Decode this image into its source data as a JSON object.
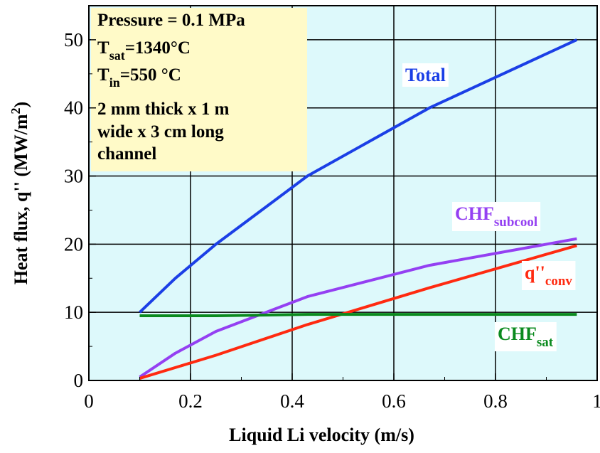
{
  "chart_data": {
    "type": "line",
    "xlabel": "Liquid Li velocity (m/s)",
    "ylabel": {
      "prefix": "Heat flux, q'' (MW/m",
      "sup": "2",
      "suffix": ")"
    },
    "xlim": [
      0,
      1
    ],
    "ylim": [
      0,
      55
    ],
    "x_ticks": [
      {
        "value": 0,
        "label": "0"
      },
      {
        "value": 0.2,
        "label": "0.2"
      },
      {
        "value": 0.4,
        "label": "0.4"
      },
      {
        "value": 0.6,
        "label": "0.6"
      },
      {
        "value": 0.8,
        "label": "0.8"
      },
      {
        "value": 1,
        "label": "1"
      }
    ],
    "y_ticks": [
      {
        "value": 0,
        "label": "0"
      },
      {
        "value": 10,
        "label": "10"
      },
      {
        "value": 20,
        "label": "20"
      },
      {
        "value": 30,
        "label": "30"
      },
      {
        "value": 40,
        "label": "40"
      },
      {
        "value": 50,
        "label": "50"
      }
    ],
    "grid": true,
    "plot_background": "#ddf9fb",
    "series": [
      {
        "key": "total",
        "label": {
          "main": "Total",
          "sub": ""
        },
        "color": "#1b3fe6",
        "points": [
          [
            0.1,
            10
          ],
          [
            0.17,
            15
          ],
          [
            0.25,
            20
          ],
          [
            0.43,
            30
          ],
          [
            0.67,
            40
          ],
          [
            0.96,
            50
          ]
        ]
      },
      {
        "key": "chf_subcool",
        "label": {
          "main": "CHF",
          "sub": "subcool"
        },
        "color": "#9440f2",
        "points": [
          [
            0.1,
            0.5
          ],
          [
            0.17,
            4
          ],
          [
            0.25,
            7.2
          ],
          [
            0.43,
            12.3
          ],
          [
            0.67,
            16.9
          ],
          [
            0.96,
            20.8
          ]
        ]
      },
      {
        "key": "q_conv",
        "label": {
          "main": "q''",
          "sub": "conv"
        },
        "color": "#ff2a10",
        "points": [
          [
            0.1,
            0.3
          ],
          [
            0.25,
            3.7
          ],
          [
            0.43,
            8.2
          ],
          [
            0.67,
            13.6
          ],
          [
            0.96,
            19.8
          ]
        ]
      },
      {
        "key": "chf_sat",
        "label": {
          "main": "CHF",
          "sub": "sat"
        },
        "color": "#0a8a1e",
        "points": [
          [
            0.1,
            9.5
          ],
          [
            0.25,
            9.5
          ],
          [
            0.43,
            9.7
          ],
          [
            0.67,
            9.7
          ],
          [
            0.96,
            9.7
          ]
        ]
      }
    ],
    "annotation_box": {
      "background": "#fffac8",
      "lines": [
        {
          "main": "Pressure = 0.1 MPa",
          "sub": "",
          "rest": ""
        },
        {
          "main": "T",
          "sub": "sat",
          "rest": "=1340°C"
        },
        {
          "main": "T",
          "sub": "in",
          "rest": "=550 °C"
        },
        {
          "main": "2 mm thick  x 1 m",
          "sub": "",
          "rest": ""
        },
        {
          "main": "wide x 3 cm long",
          "sub": "",
          "rest": ""
        },
        {
          "main": "channel",
          "sub": "",
          "rest": ""
        }
      ]
    }
  }
}
